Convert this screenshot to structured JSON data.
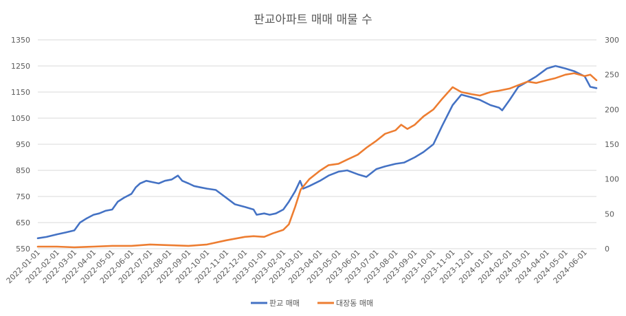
{
  "chart_data": {
    "type": "line",
    "title": "판교아파트 매매 매물 수",
    "x": [
      "2022-01-01",
      "2022-02-01",
      "2022-03-01",
      "2022-04-01",
      "2022-05-01",
      "2022-06-01",
      "2022-07-01",
      "2022-08-01",
      "2022-09-01",
      "2022-10-01",
      "2022-11-01",
      "2022-12-01",
      "2023-01-01",
      "2023-02-01",
      "2023-03-01",
      "2023-04-01",
      "2023-05-01",
      "2023-06-01",
      "2023-07-01",
      "2023-08-01",
      "2023-09-01",
      "2023-10-01",
      "2023-11-01",
      "2023-12-01",
      "2024-01-01",
      "2024-02-01",
      "2024-03-01",
      "2024-04-01",
      "2024-05-01",
      "2024-06-01"
    ],
    "x_tick_labels": [
      "2022-01-01",
      "2022-02-01",
      "2022-03-01",
      "2022-04-01",
      "2022-05-01",
      "2022-06-01",
      "2022-07-01",
      "2022-08-01",
      "2022-09-01",
      "2022-10-01",
      "2022-11-01",
      "2022-12-01",
      "2023-01-01",
      "2023-02-01",
      "2023-03-01",
      "2023-04-01",
      "2023-05-01",
      "2023-06-01",
      "2023-07-01",
      "2023-08-01",
      "2023-09-01",
      "2023-10-01",
      "2023-11-01",
      "2023-12-01",
      "2024-01-01",
      "2024-02-01",
      "2024-03-01",
      "2024-04-01",
      "2024-05-01",
      "2024-06-01"
    ],
    "x_end": "2024-06-20",
    "y_left": {
      "ylim": [
        550,
        1350
      ],
      "ticks": [
        550,
        650,
        750,
        850,
        950,
        1050,
        1150,
        1250,
        1350
      ]
    },
    "y_right": {
      "ylim": [
        0,
        300
      ],
      "ticks": [
        0,
        50,
        100,
        150,
        200,
        250,
        300
      ]
    },
    "grid": true,
    "legend_position": "bottom",
    "series": [
      {
        "name": "판교 매매",
        "axis": "left",
        "color": "#4472c4",
        "points": [
          [
            "2022-01-01",
            590
          ],
          [
            "2022-01-15",
            595
          ],
          [
            "2022-02-01",
            605
          ],
          [
            "2022-02-15",
            612
          ],
          [
            "2022-03-01",
            620
          ],
          [
            "2022-03-10",
            650
          ],
          [
            "2022-03-20",
            665
          ],
          [
            "2022-04-01",
            680
          ],
          [
            "2022-04-10",
            685
          ],
          [
            "2022-04-20",
            695
          ],
          [
            "2022-05-01",
            700
          ],
          [
            "2022-05-10",
            730
          ],
          [
            "2022-05-20",
            745
          ],
          [
            "2022-06-01",
            760
          ],
          [
            "2022-06-08",
            785
          ],
          [
            "2022-06-15",
            800
          ],
          [
            "2022-06-25",
            810
          ],
          [
            "2022-07-05",
            805
          ],
          [
            "2022-07-15",
            800
          ],
          [
            "2022-07-25",
            810
          ],
          [
            "2022-08-05",
            815
          ],
          [
            "2022-08-15",
            830
          ],
          [
            "2022-08-22",
            810
          ],
          [
            "2022-09-01",
            800
          ],
          [
            "2022-09-10",
            790
          ],
          [
            "2022-09-20",
            785
          ],
          [
            "2022-10-01",
            780
          ],
          [
            "2022-10-15",
            775
          ],
          [
            "2022-11-01",
            745
          ],
          [
            "2022-11-15",
            720
          ],
          [
            "2022-12-01",
            710
          ],
          [
            "2022-12-15",
            700
          ],
          [
            "2022-12-20",
            680
          ],
          [
            "2023-01-01",
            685
          ],
          [
            "2023-01-10",
            680
          ],
          [
            "2023-01-20",
            685
          ],
          [
            "2023-02-01",
            700
          ],
          [
            "2023-02-10",
            730
          ],
          [
            "2023-02-20",
            770
          ],
          [
            "2023-02-28",
            810
          ],
          [
            "2023-03-05",
            780
          ],
          [
            "2023-03-15",
            790
          ],
          [
            "2023-04-01",
            810
          ],
          [
            "2023-04-15",
            830
          ],
          [
            "2023-05-01",
            845
          ],
          [
            "2023-05-15",
            850
          ],
          [
            "2023-06-01",
            835
          ],
          [
            "2023-06-15",
            825
          ],
          [
            "2023-07-01",
            855
          ],
          [
            "2023-07-15",
            865
          ],
          [
            "2023-08-01",
            875
          ],
          [
            "2023-08-15",
            880
          ],
          [
            "2023-09-01",
            900
          ],
          [
            "2023-09-15",
            920
          ],
          [
            "2023-10-01",
            950
          ],
          [
            "2023-10-15",
            1020
          ],
          [
            "2023-11-01",
            1100
          ],
          [
            "2023-11-15",
            1140
          ],
          [
            "2023-12-01",
            1130
          ],
          [
            "2023-12-15",
            1120
          ],
          [
            "2024-01-01",
            1100
          ],
          [
            "2024-01-15",
            1090
          ],
          [
            "2024-01-20",
            1080
          ],
          [
            "2024-02-01",
            1120
          ],
          [
            "2024-02-15",
            1170
          ],
          [
            "2024-03-01",
            1190
          ],
          [
            "2024-03-15",
            1210
          ],
          [
            "2024-04-01",
            1240
          ],
          [
            "2024-04-15",
            1250
          ],
          [
            "2024-05-01",
            1240
          ],
          [
            "2024-05-15",
            1230
          ],
          [
            "2024-06-01",
            1210
          ],
          [
            "2024-06-10",
            1170
          ],
          [
            "2024-06-20",
            1165
          ]
        ]
      },
      {
        "name": "대장동 매매",
        "axis": "right",
        "color": "#ed7d31",
        "points": [
          [
            "2022-01-01",
            3
          ],
          [
            "2022-02-01",
            3
          ],
          [
            "2022-03-01",
            2
          ],
          [
            "2022-04-01",
            3
          ],
          [
            "2022-05-01",
            4
          ],
          [
            "2022-06-01",
            4
          ],
          [
            "2022-07-01",
            6
          ],
          [
            "2022-08-01",
            5
          ],
          [
            "2022-09-01",
            4
          ],
          [
            "2022-10-01",
            6
          ],
          [
            "2022-11-01",
            12
          ],
          [
            "2022-12-01",
            17
          ],
          [
            "2022-12-15",
            18
          ],
          [
            "2023-01-01",
            17
          ],
          [
            "2023-01-15",
            22
          ],
          [
            "2023-02-01",
            27
          ],
          [
            "2023-02-10",
            35
          ],
          [
            "2023-02-20",
            60
          ],
          [
            "2023-03-01",
            85
          ],
          [
            "2023-03-15",
            100
          ],
          [
            "2023-04-01",
            112
          ],
          [
            "2023-04-15",
            120
          ],
          [
            "2023-05-01",
            122
          ],
          [
            "2023-05-15",
            128
          ],
          [
            "2023-06-01",
            135
          ],
          [
            "2023-06-15",
            145
          ],
          [
            "2023-07-01",
            155
          ],
          [
            "2023-07-15",
            165
          ],
          [
            "2023-08-01",
            170
          ],
          [
            "2023-08-10",
            178
          ],
          [
            "2023-08-20",
            172
          ],
          [
            "2023-09-01",
            178
          ],
          [
            "2023-09-15",
            190
          ],
          [
            "2023-10-01",
            200
          ],
          [
            "2023-10-15",
            215
          ],
          [
            "2023-11-01",
            232
          ],
          [
            "2023-11-15",
            225
          ],
          [
            "2023-12-01",
            222
          ],
          [
            "2023-12-15",
            220
          ],
          [
            "2024-01-01",
            225
          ],
          [
            "2024-01-15",
            227
          ],
          [
            "2024-02-01",
            230
          ],
          [
            "2024-02-15",
            235
          ],
          [
            "2024-03-01",
            240
          ],
          [
            "2024-03-15",
            238
          ],
          [
            "2024-04-01",
            242
          ],
          [
            "2024-04-15",
            245
          ],
          [
            "2024-05-01",
            250
          ],
          [
            "2024-05-15",
            252
          ],
          [
            "2024-06-01",
            248
          ],
          [
            "2024-06-10",
            250
          ],
          [
            "2024-06-20",
            242
          ]
        ]
      }
    ]
  }
}
